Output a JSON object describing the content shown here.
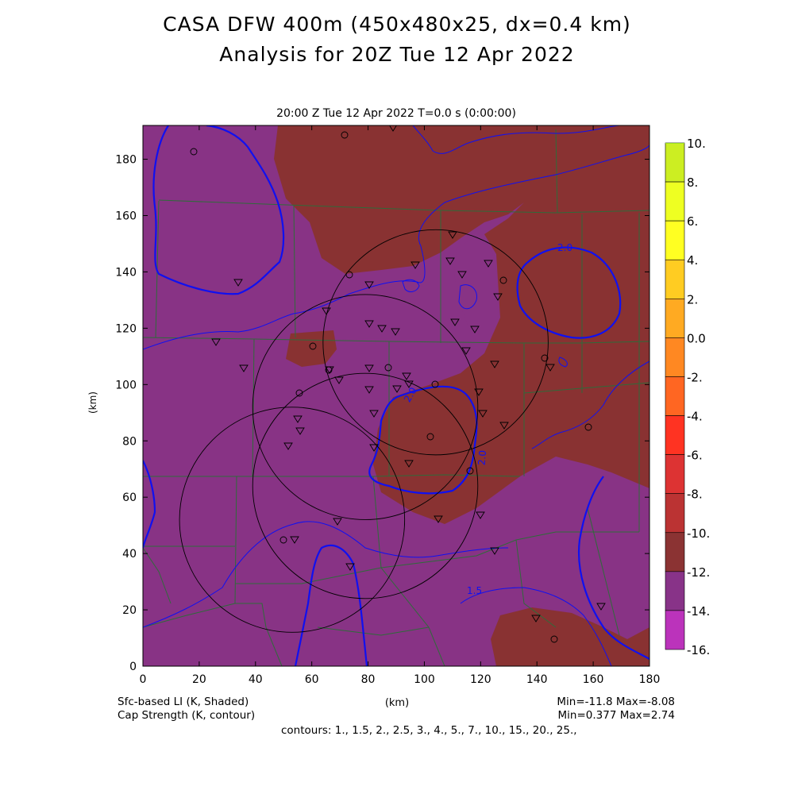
{
  "title_line1": "CASA DFW 400m (450x480x25, dx=0.4 km)",
  "title_line2": "Analysis for 20Z Tue 12 Apr 2022",
  "subtitle": "20:00 Z Tue 12 Apr 2022    T=0.0 s (0:00:00)",
  "ylabel": "(km)",
  "xlabel": "(km)",
  "footer": {
    "field1": "Sfc-based LI (K, Shaded)",
    "field2": "Cap Strength (K, contour)",
    "minmax1": "Min=-11.8 Max=-8.08",
    "minmax2": "Min=0.377 Max=2.74",
    "contours": "contours: 1., 1.5, 2., 2.5, 3., 4., 5., 7., 10., 15., 20., 25.,"
  },
  "map_data": {
    "x_range_km": [
      0,
      180
    ],
    "y_range_km": [
      0,
      192
    ],
    "x_ticks": [
      "0",
      "20",
      "40",
      "60",
      "80",
      "100",
      "120",
      "140",
      "160",
      "180"
    ],
    "y_ticks": [
      "0",
      "20",
      "40",
      "60",
      "80",
      "100",
      "120",
      "140",
      "160",
      "180"
    ],
    "contour_labels": [
      "2.0",
      "2.0",
      "2.0",
      "1.5"
    ],
    "colorbar": {
      "labels": [
        "10.",
        "8.",
        "6.",
        "4.",
        "2.",
        "0.0",
        "-2.",
        "-4.",
        "-6.",
        "-8.",
        "-10.",
        "-12.",
        "-14.",
        "-16."
      ],
      "colors": [
        "#99dd22",
        "#ccee22",
        "#eeff22",
        "#ffff22",
        "#ffcc22",
        "#ffaa22",
        "#ff8822",
        "#ff6622",
        "#ff3322",
        "#dd3333",
        "#bb3333",
        "#8b3333",
        "#883388",
        "#bb33bb",
        "#dd44dd"
      ]
    },
    "radar_rings_center_km": [
      [
        104,
        115
      ],
      [
        79,
        92
      ],
      [
        53,
        52
      ],
      [
        79,
        64
      ]
    ],
    "radar_ring_radius_km": 40
  },
  "colors": {
    "li_minus10_to_minus12": "#883385",
    "li_minus8_to_minus10": "#893232",
    "cap_contour": "#1010f0",
    "county_lines": "#2f6b3a",
    "radar_rings": "#000000"
  }
}
